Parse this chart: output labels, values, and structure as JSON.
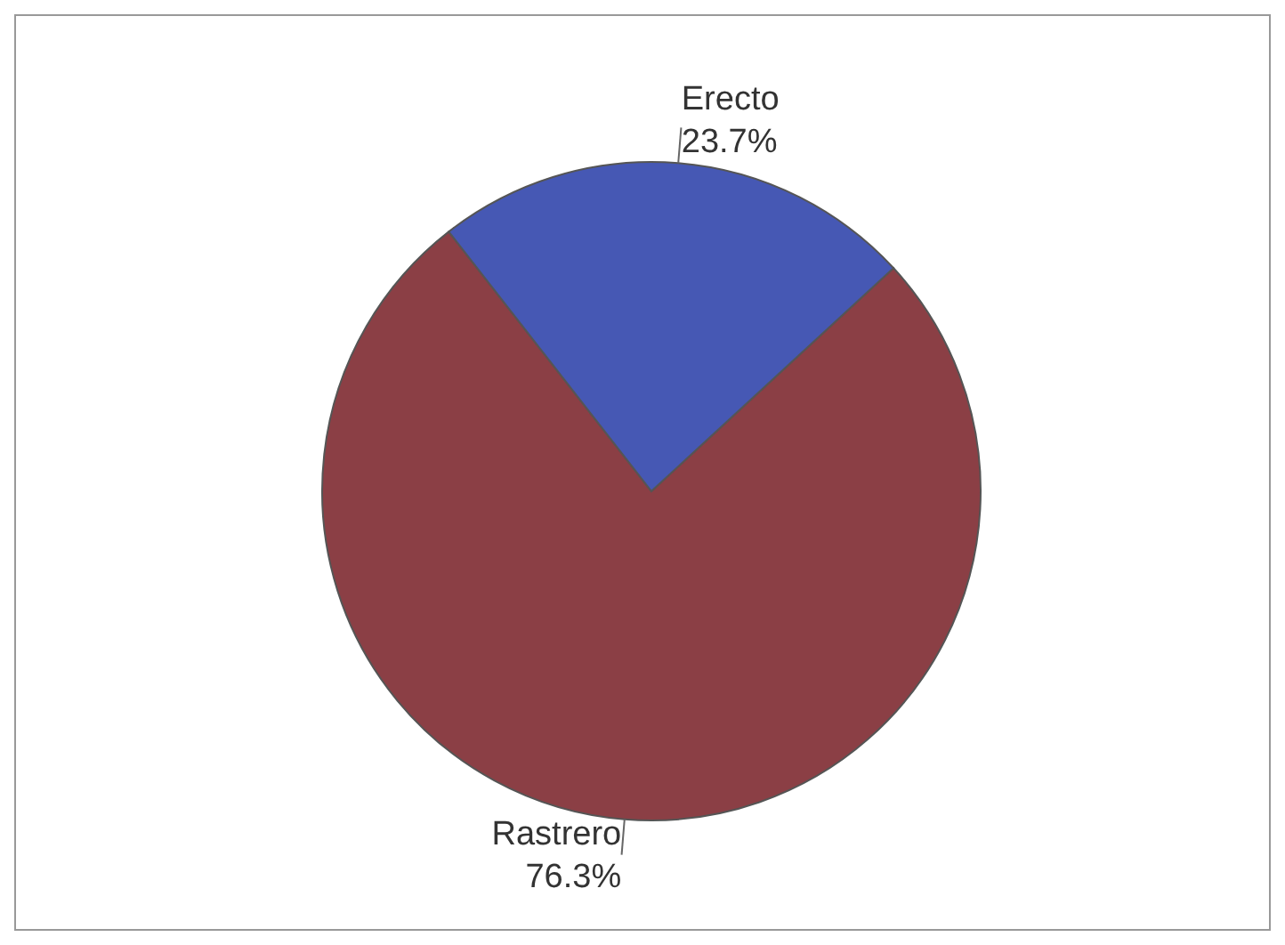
{
  "chart_data": {
    "type": "pie",
    "categories": [
      "Rastrero",
      "Erecto"
    ],
    "values": [
      76.3,
      23.7
    ],
    "colors": [
      "#8b3f45",
      "#4658b4"
    ],
    "value_labels": [
      "76.3%",
      "23.7%"
    ]
  }
}
